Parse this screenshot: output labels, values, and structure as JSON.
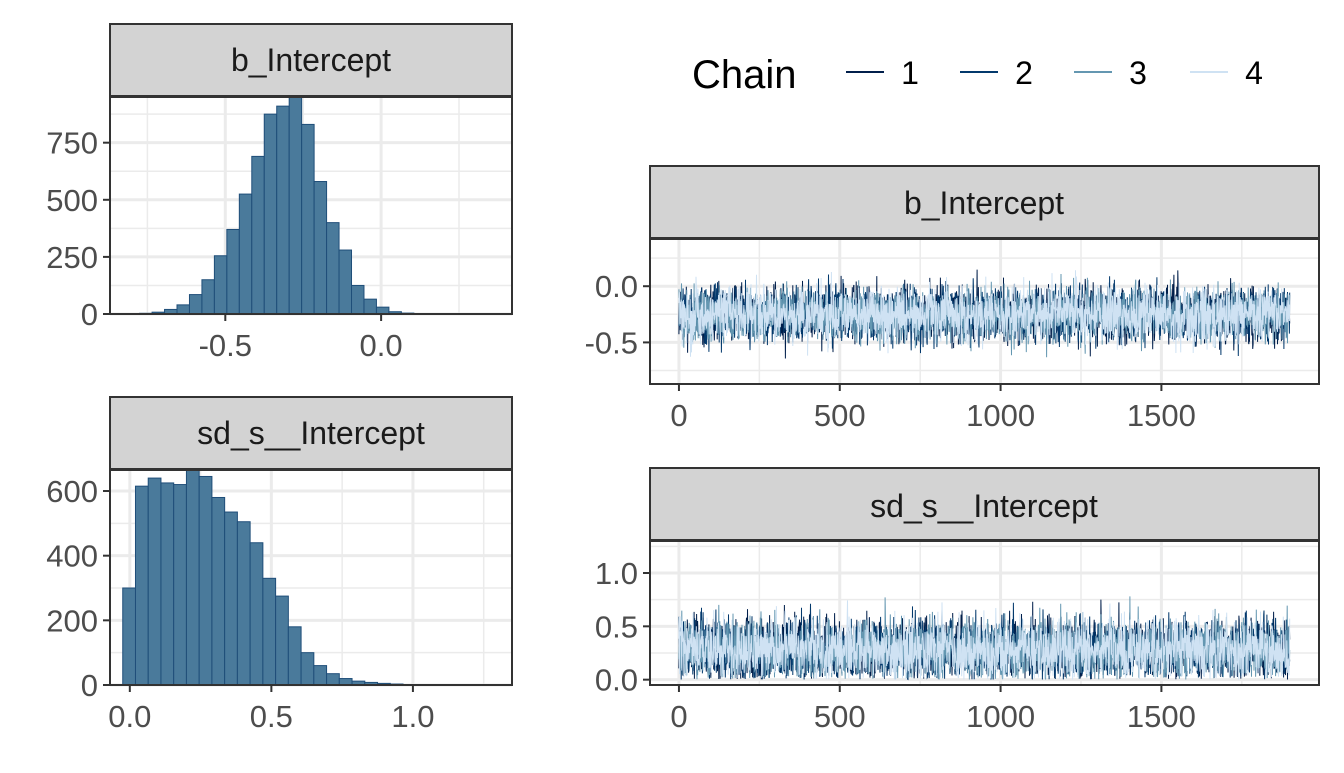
{
  "legend": {
    "title": "Chain",
    "items": [
      {
        "label": "1",
        "color": "#011f4b"
      },
      {
        "label": "2",
        "color": "#03396c"
      },
      {
        "label": "3",
        "color": "#6497b1"
      },
      {
        "label": "4",
        "color": "#cfe2f3"
      }
    ]
  },
  "chart_data": [
    {
      "type": "bar",
      "panel": "histogram",
      "title": "b_Intercept",
      "xlim": [
        -0.87,
        0.42
      ],
      "ylim": [
        0,
        950
      ],
      "x_ticks": [
        -0.5,
        0.0
      ],
      "x_tick_labels": [
        "-0.5",
        "0.0"
      ],
      "y_ticks": [
        0,
        250,
        500,
        750
      ],
      "y_tick_labels": [
        "0",
        "250",
        "500",
        "750"
      ],
      "bin_start": -0.815,
      "bin_width": 0.04,
      "values": [
        1,
        3,
        8,
        20,
        40,
        85,
        150,
        255,
        370,
        525,
        690,
        875,
        910,
        950,
        830,
        580,
        400,
        280,
        125,
        65,
        30,
        10,
        4,
        1
      ],
      "bar_color": "#4a7a9b",
      "bar_edge": "#1f4e79"
    },
    {
      "type": "bar",
      "panel": "histogram",
      "title": "sd_s__Intercept",
      "xlim": [
        -0.07,
        1.35
      ],
      "ylim": [
        0,
        665
      ],
      "x_ticks": [
        0.0,
        0.5,
        1.0
      ],
      "x_tick_labels": [
        "0.0",
        "0.5",
        "1.0"
      ],
      "y_ticks": [
        0,
        200,
        400,
        600
      ],
      "y_tick_labels": [
        "0",
        "200",
        "400",
        "600"
      ],
      "bin_start": -0.025,
      "bin_width": 0.045,
      "values": [
        300,
        615,
        640,
        625,
        620,
        665,
        645,
        580,
        535,
        505,
        440,
        330,
        275,
        180,
        100,
        60,
        35,
        20,
        12,
        8,
        5,
        3,
        1,
        1,
        1,
        0,
        0,
        1
      ],
      "bar_color": "#4a7a9b",
      "bar_edge": "#1f4e79"
    },
    {
      "type": "line",
      "panel": "trace",
      "title": "b_Intercept",
      "xlim": [
        -90,
        1990
      ],
      "ylim": [
        -0.87,
        0.42
      ],
      "x_ticks": [
        0,
        500,
        1000,
        1500
      ],
      "x_tick_labels": [
        "0",
        "500",
        "1000",
        "1500"
      ],
      "y_ticks": [
        0.0,
        -0.5
      ],
      "y_tick_labels": [
        "0.0",
        "-0.5"
      ],
      "iterations": 1900,
      "center": -0.25,
      "spread": 0.17,
      "floor": null
    },
    {
      "type": "line",
      "panel": "trace",
      "title": "sd_s__Intercept",
      "xlim": [
        -90,
        1990
      ],
      "ylim": [
        -0.05,
        1.3
      ],
      "x_ticks": [
        0,
        500,
        1000,
        1500
      ],
      "x_tick_labels": [
        "0",
        "500",
        "1000",
        "1500"
      ],
      "y_ticks": [
        0.0,
        0.5,
        1.0
      ],
      "y_tick_labels": [
        "0.0",
        "0.5",
        "1.0"
      ],
      "iterations": 1900,
      "center": 0.28,
      "spread": 0.2,
      "floor": 0
    }
  ]
}
